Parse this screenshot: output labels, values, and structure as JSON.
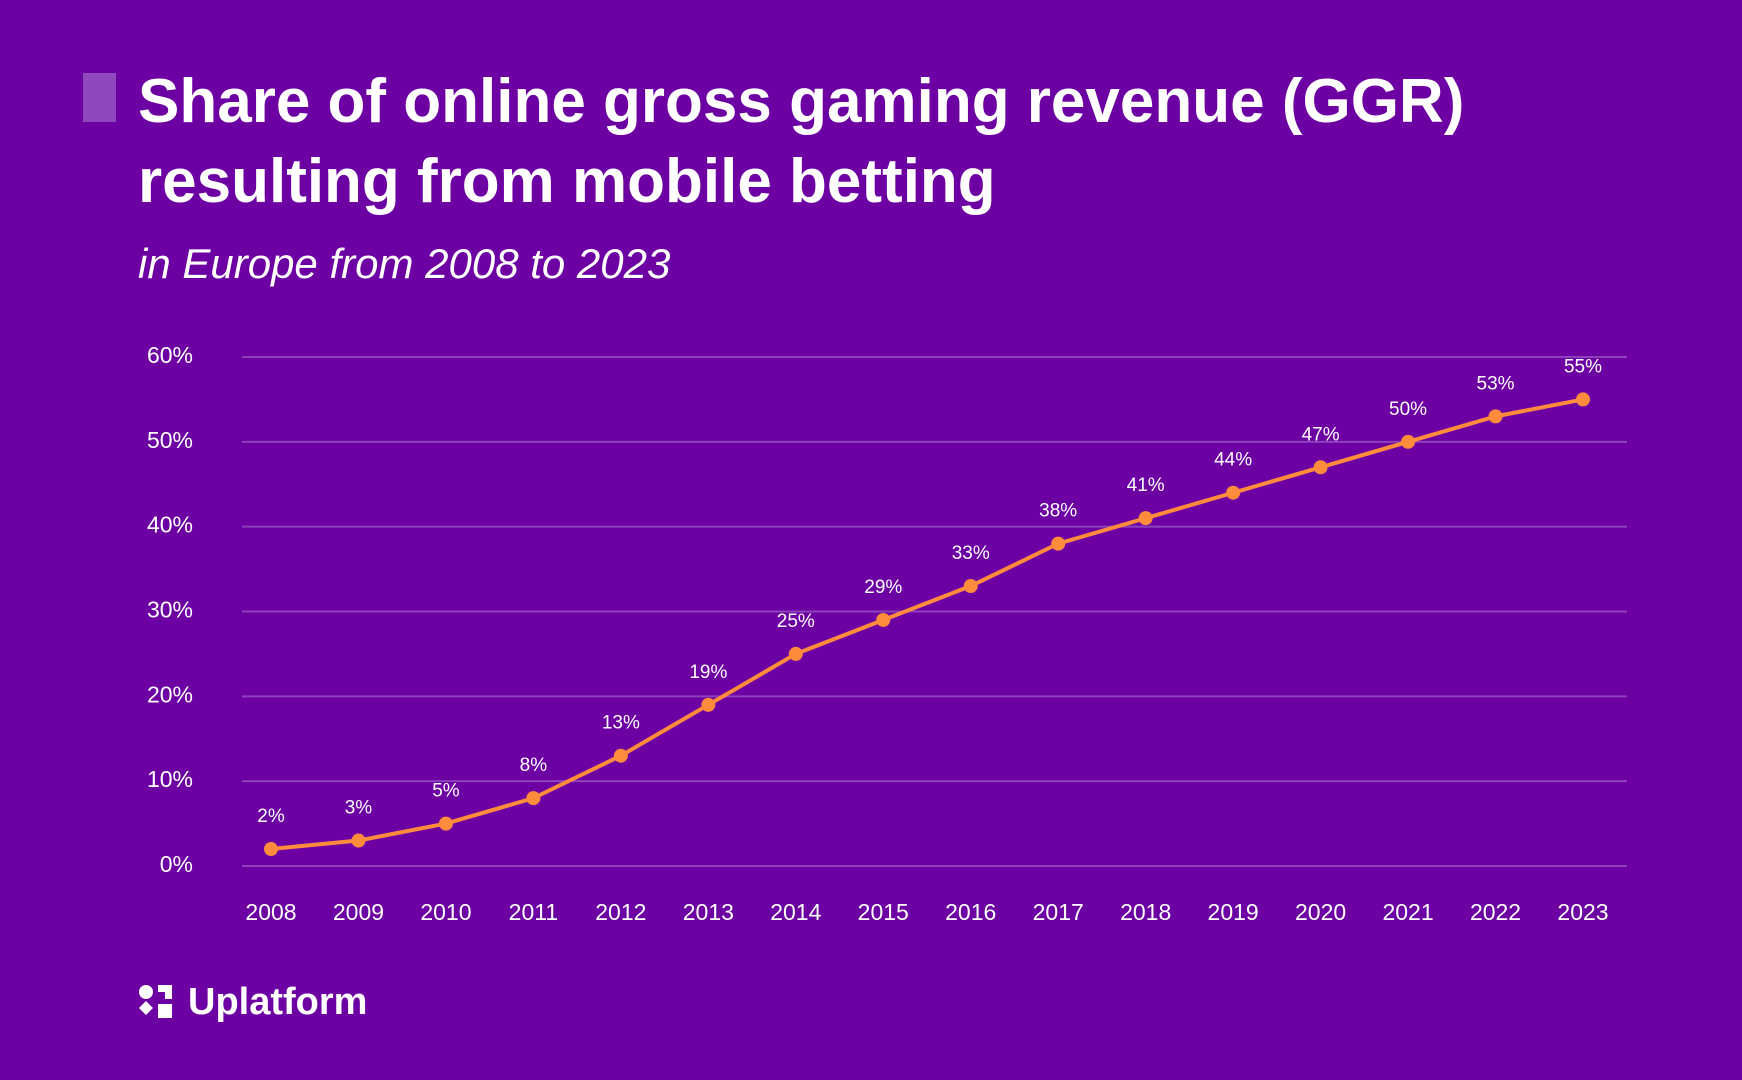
{
  "chart_data": {
    "type": "line",
    "title": "Share of online gross gaming revenue (GGR) resulting from mobile betting",
    "subtitle": "in Europe from 2008 to 2023",
    "categories": [
      "2008",
      "2009",
      "2010",
      "2011",
      "2012",
      "2013",
      "2014",
      "2015",
      "2016",
      "2017",
      "2018",
      "2019",
      "2020",
      "2021",
      "2022",
      "2023"
    ],
    "series": [
      {
        "color": "#ff8c3c",
        "values": [
          2,
          3,
          5,
          8,
          13,
          19,
          25,
          29,
          33,
          38,
          41,
          44,
          47,
          50,
          53,
          55
        ],
        "value_labels": [
          "2%",
          "3%",
          "5%",
          "8%",
          "13%",
          "19%",
          "25%",
          "29%",
          "33%",
          "38%",
          "41%",
          "44%",
          "47%",
          "50%",
          "53%",
          "55%"
        ]
      }
    ],
    "ylim": [
      0,
      60
    ],
    "yticks": [
      {
        "value": 0,
        "label": "0%"
      },
      {
        "value": 10,
        "label": "10%"
      },
      {
        "value": 20,
        "label": "20%"
      },
      {
        "value": 30,
        "label": "30%"
      },
      {
        "value": 40,
        "label": "40%"
      },
      {
        "value": 50,
        "label": "50%"
      },
      {
        "value": 60,
        "label": "60%"
      }
    ],
    "grid": true
  },
  "brand": "Uplatform"
}
